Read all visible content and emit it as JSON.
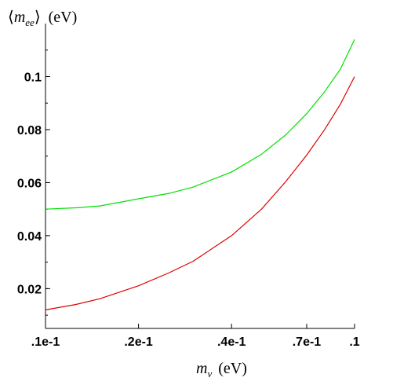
{
  "chart_data": {
    "type": "line",
    "xscale": "log",
    "xlim": [
      0.01,
      0.1
    ],
    "ylim": [
      0.005,
      0.12
    ],
    "x_ticks": [
      {
        "value": 0.01,
        "label": ".1e-1"
      },
      {
        "value": 0.02,
        "label": ".2e-1"
      },
      {
        "value": 0.04,
        "label": ".4e-1"
      },
      {
        "value": 0.07,
        "label": ".7e-1"
      },
      {
        "value": 0.1,
        "label": ".1"
      }
    ],
    "y_ticks": [
      {
        "value": 0.02,
        "label": "0.02"
      },
      {
        "value": 0.04,
        "label": "0.04"
      },
      {
        "value": 0.06,
        "label": "0.06"
      },
      {
        "value": 0.08,
        "label": "0.08"
      },
      {
        "value": 0.1,
        "label": "0.1"
      }
    ],
    "xlabel": {
      "symbol": "m",
      "subscript": "ν",
      "unit": "(eV)"
    },
    "ylabel": {
      "symbol": "m",
      "subscript": "ee",
      "unit": "(eV)",
      "open": "⟨",
      "close": "⟩"
    },
    "grid": false,
    "x": [
      0.01,
      0.0125,
      0.015,
      0.02,
      0.025,
      0.03,
      0.04,
      0.05,
      0.06,
      0.07,
      0.08,
      0.09,
      0.1
    ],
    "series": [
      {
        "color": "#00e000",
        "values": [
          0.05,
          0.0505,
          0.0512,
          0.0539,
          0.0559,
          0.0583,
          0.064,
          0.0707,
          0.0781,
          0.086,
          0.0943,
          0.1028,
          0.114
        ]
      },
      {
        "color": "#e00000",
        "values": [
          0.012,
          0.014,
          0.0162,
          0.0211,
          0.0259,
          0.0303,
          0.04,
          0.05,
          0.0605,
          0.0704,
          0.08,
          0.0896,
          0.1
        ]
      }
    ]
  }
}
